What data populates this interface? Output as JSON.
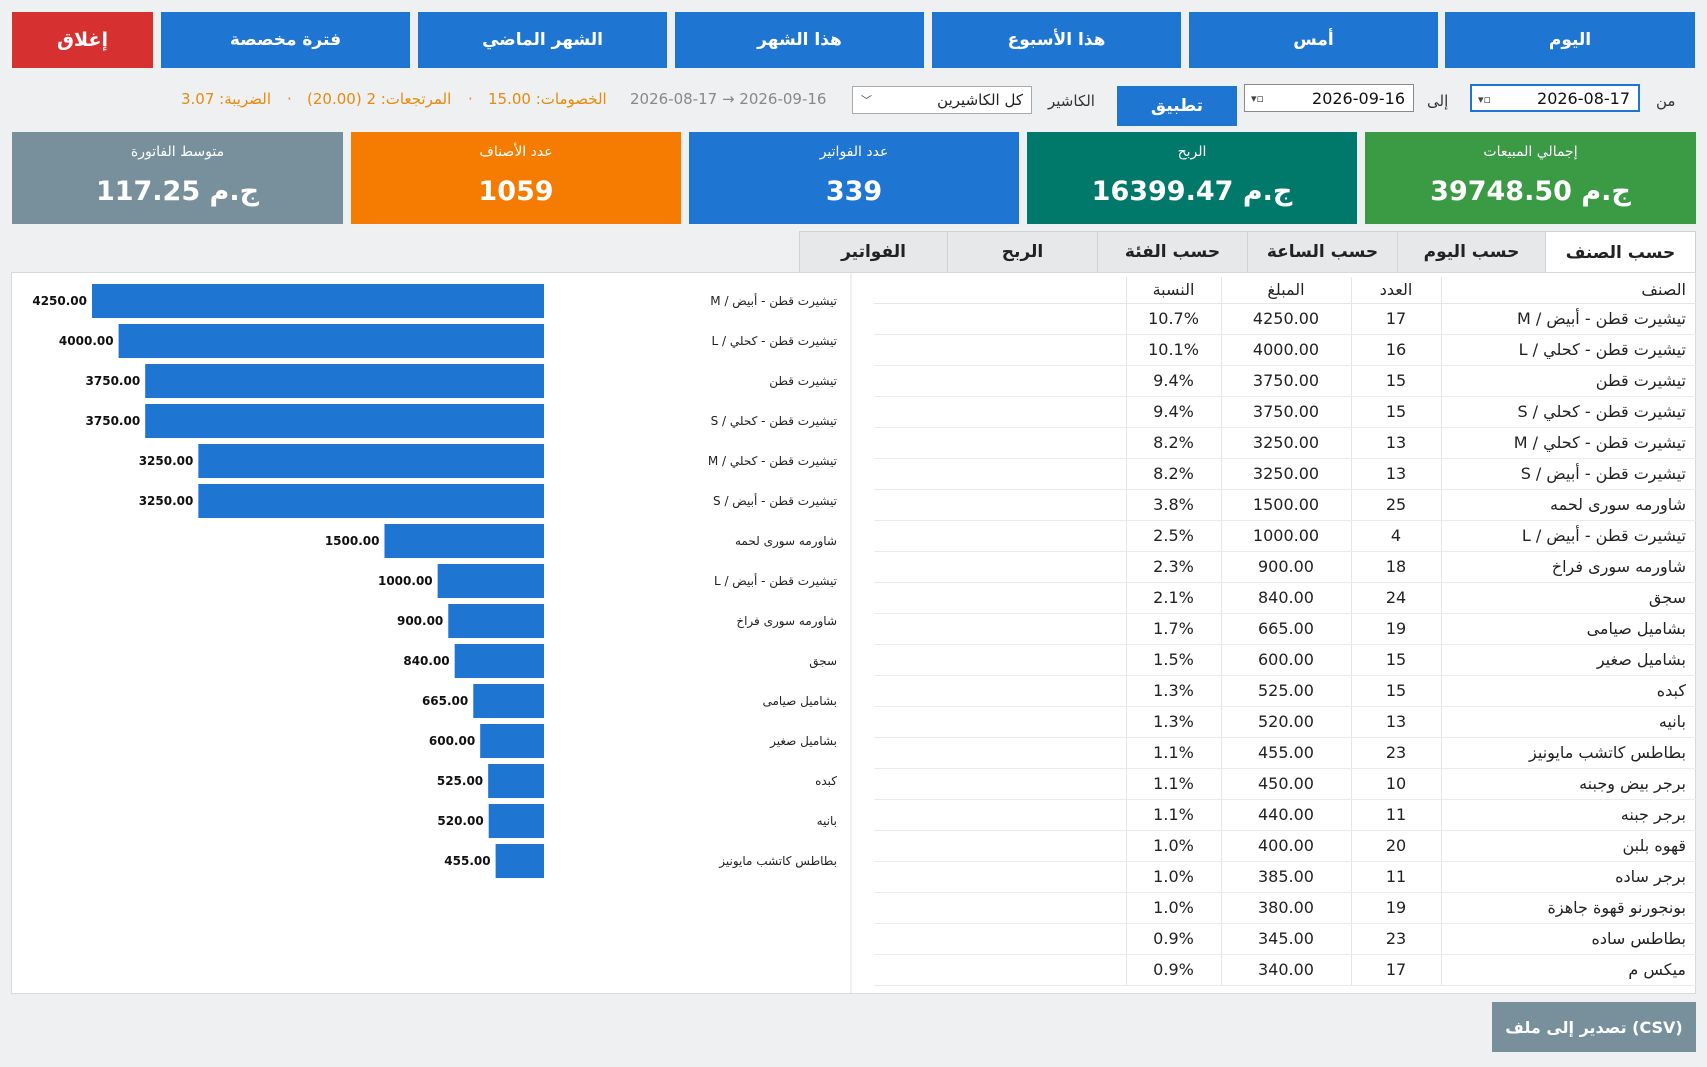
{
  "period_buttons": {
    "today": "اليوم",
    "yesterday": "أمس",
    "this_week": "هذا الأسبوع",
    "this_month": "هذا الشهر",
    "last_month": "الشهر الماضي",
    "custom": "فترة مخصصة",
    "close": "إغلاق"
  },
  "filters": {
    "from_label": "من",
    "from_date": "2026-08-17",
    "to_label": "إلى",
    "to_date": "2026-09-16",
    "apply": "تطبيق",
    "cashier_label": "الكاشير",
    "cashier_value": "كل الكاشيرين",
    "range_text": "2026-08-17  →  2026-09-16",
    "discounts": "الخصومات: 15.00",
    "returns": "المرتجعات: 2 (20.00)",
    "tax": "الضريبة: 3.07",
    "sep": "·"
  },
  "kpis": [
    {
      "title": "إجمالي المبيعات",
      "value": "39748.50 ج.م",
      "color": "#3b9a44"
    },
    {
      "title": "الربح",
      "value": "16399.47 ج.م",
      "color": "#00796b"
    },
    {
      "title": "عدد الفواتير",
      "value": "339",
      "color": "#1e76d2"
    },
    {
      "title": "عدد الأصناف",
      "value": "1059",
      "color": "#f57c00"
    },
    {
      "title": "متوسط الفاتورة",
      "value": "117.25 ج.م",
      "color": "#78909c"
    }
  ],
  "tabs": [
    "حسب الصنف",
    "حسب اليوم",
    "حسب الساعة",
    "حسب الفئة",
    "الربح",
    "الفواتير"
  ],
  "table": {
    "headers": {
      "name": "الصنف",
      "count": "العدد",
      "amount": "المبلغ",
      "percent": "النسبة"
    },
    "rows": [
      {
        "name": "تيشيرت قطن - أبيض / M",
        "count": "17",
        "amount": "4250.00",
        "percent": "10.7%"
      },
      {
        "name": "تيشيرت قطن - كحلي / L",
        "count": "16",
        "amount": "4000.00",
        "percent": "10.1%"
      },
      {
        "name": "تيشيرت قطن",
        "count": "15",
        "amount": "3750.00",
        "percent": "9.4%"
      },
      {
        "name": "تيشيرت قطن - كحلي / S",
        "count": "15",
        "amount": "3750.00",
        "percent": "9.4%"
      },
      {
        "name": "تيشيرت قطن - كحلي / M",
        "count": "13",
        "amount": "3250.00",
        "percent": "8.2%"
      },
      {
        "name": "تيشيرت قطن - أبيض / S",
        "count": "13",
        "amount": "3250.00",
        "percent": "8.2%"
      },
      {
        "name": "شاورمه سورى لحمه",
        "count": "25",
        "amount": "1500.00",
        "percent": "3.8%"
      },
      {
        "name": "تيشيرت قطن - أبيض / L",
        "count": "4",
        "amount": "1000.00",
        "percent": "2.5%"
      },
      {
        "name": "شاورمه سورى فراخ",
        "count": "18",
        "amount": "900.00",
        "percent": "2.3%"
      },
      {
        "name": "سجق",
        "count": "24",
        "amount": "840.00",
        "percent": "2.1%"
      },
      {
        "name": "بشاميل صيامى",
        "count": "19",
        "amount": "665.00",
        "percent": "1.7%"
      },
      {
        "name": "بشاميل صغير",
        "count": "15",
        "amount": "600.00",
        "percent": "1.5%"
      },
      {
        "name": "كبده",
        "count": "15",
        "amount": "525.00",
        "percent": "1.3%"
      },
      {
        "name": "بانيه",
        "count": "13",
        "amount": "520.00",
        "percent": "1.3%"
      },
      {
        "name": "بطاطس كاتشب مايونيز",
        "count": "23",
        "amount": "455.00",
        "percent": "1.1%"
      },
      {
        "name": "برجر بيض وجبنه",
        "count": "10",
        "amount": "450.00",
        "percent": "1.1%"
      },
      {
        "name": "برجر جبنه",
        "count": "11",
        "amount": "440.00",
        "percent": "1.1%"
      },
      {
        "name": "قهوه بلبن",
        "count": "20",
        "amount": "400.00",
        "percent": "1.0%"
      },
      {
        "name": "برجر ساده",
        "count": "11",
        "amount": "385.00",
        "percent": "1.0%"
      },
      {
        "name": "بونجورنو قهوة جاهزة",
        "count": "19",
        "amount": "380.00",
        "percent": "1.0%"
      },
      {
        "name": "بطاطس ساده",
        "count": "23",
        "amount": "345.00",
        "percent": "0.9%"
      },
      {
        "name": "ميكس م",
        "count": "17",
        "amount": "340.00",
        "percent": "0.9%"
      }
    ]
  },
  "chart_data": {
    "type": "bar",
    "orientation": "horizontal",
    "categories": [
      "تيشيرت قطن - أبيض / M",
      "تيشيرت قطن - كحلي / L",
      "تيشيرت قطن",
      "تيشيرت قطن - كحلي / S",
      "تيشيرت قطن - كحلي / M",
      "تيشيرت قطن - أبيض / S",
      "شاورمه سورى لحمه",
      "تيشيرت قطن - أبيض / L",
      "شاورمه سورى فراخ",
      "سجق",
      "بشاميل صيامى",
      "بشاميل صغير",
      "كبده",
      "بانيه",
      "بطاطس كاتشب مايونيز"
    ],
    "values": [
      4250,
      4000,
      3750,
      3750,
      3250,
      3250,
      1500,
      1000,
      900,
      840,
      665,
      600,
      525,
      520,
      455
    ],
    "value_labels": [
      "4250.00",
      "4000.00",
      "3750.00",
      "3750.00",
      "3250.00",
      "3250.00",
      "1500.00",
      "1000.00",
      "900.00",
      "840.00",
      "665.00",
      "600.00",
      "525.00",
      "520.00",
      "455.00"
    ],
    "bar_color": "#1e76d2",
    "xlim": [
      0,
      4250
    ],
    "title": "",
    "xlabel": "",
    "ylabel": ""
  },
  "export_button": "تصدير إلى ملف (CSV)"
}
